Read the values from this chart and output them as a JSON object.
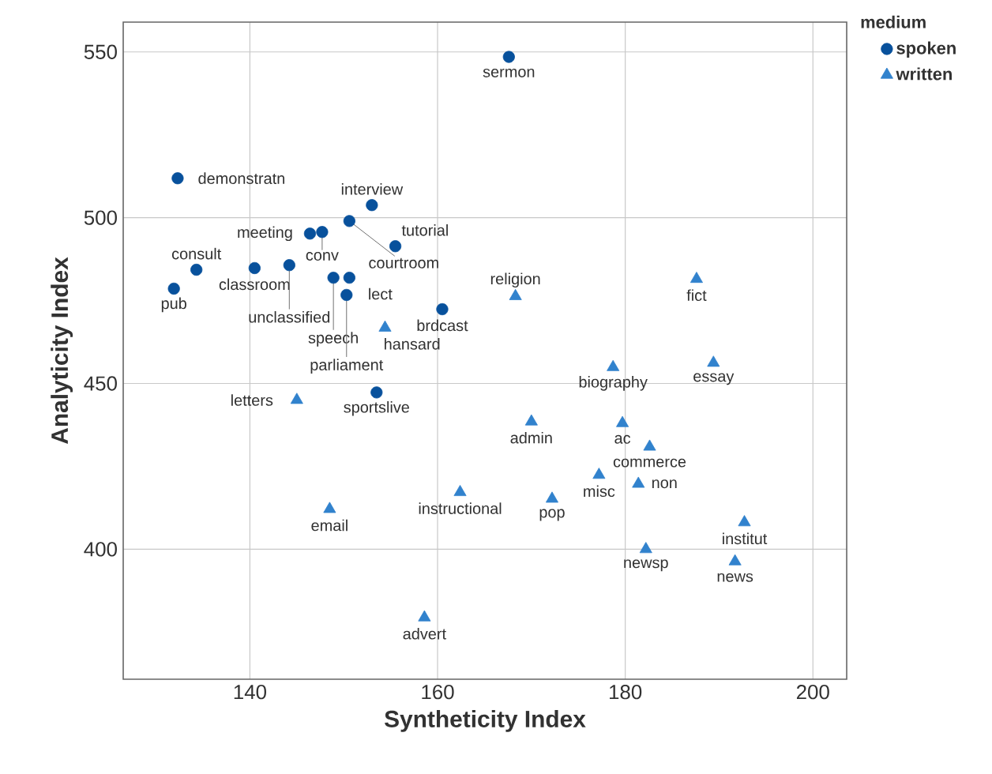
{
  "chart_data": {
    "type": "scatter",
    "xlabel": "Syntheticity Index",
    "ylabel": "Analyticity Index",
    "legend_title": "medium",
    "legend": "top right",
    "grid": true,
    "xlim": [
      126.5,
      203.6
    ],
    "ylim": [
      360.8,
      559
    ],
    "xticks": [
      140,
      160,
      180,
      200
    ],
    "yticks": [
      400,
      450,
      500,
      550
    ],
    "series": [
      {
        "name": "spoken",
        "color": "#08519c",
        "marker": "circle",
        "x": [
          167.6,
          132.3,
          153.0,
          150.6,
          146.4,
          147.7,
          155.5,
          134.3,
          131.9,
          140.5,
          144.2,
          148.9,
          150.6,
          150.3,
          160.5,
          153.5
        ],
        "values": [
          548.5,
          511.9,
          503.8,
          499.0,
          495.2,
          495.7,
          491.4,
          484.3,
          478.6,
          484.8,
          485.7,
          481.9,
          481.9,
          476.7,
          472.4,
          447.3
        ]
      },
      {
        "name": "written",
        "color": "#3182cd",
        "marker": "triangle",
        "x": [
          154.4,
          168.3,
          187.6,
          189.4,
          178.7,
          145.0,
          170.0,
          179.7,
          182.6,
          177.2,
          181.4,
          162.4,
          172.2,
          148.5,
          192.7,
          182.2,
          191.7,
          158.6
        ],
        "values": [
          466.8,
          476.3,
          481.5,
          456.2,
          454.9,
          445.0,
          438.5,
          438.0,
          430.9,
          422.4,
          419.7,
          417.2,
          415.2,
          412.1,
          408.1,
          400.0,
          396.3,
          379.4
        ]
      }
    ],
    "annotations": [
      {
        "text": "sermon",
        "x": 167.6,
        "y": 548.5
      },
      {
        "text": "demonstratn",
        "x": 132.3,
        "y": 511.9
      },
      {
        "text": "interview",
        "x": 153.0,
        "y": 503.8
      },
      {
        "text": "courtroom",
        "x": 150.6,
        "y": 499.0
      },
      {
        "text": "meeting",
        "x": 146.4,
        "y": 495.2
      },
      {
        "text": "conv",
        "x": 147.7,
        "y": 495.7
      },
      {
        "text": "tutorial",
        "x": 155.5,
        "y": 491.4
      },
      {
        "text": "consult",
        "x": 134.3,
        "y": 484.3
      },
      {
        "text": "pub",
        "x": 131.9,
        "y": 478.6
      },
      {
        "text": "classroom",
        "x": 140.5,
        "y": 484.8
      },
      {
        "text": "unclassified",
        "x": 144.2,
        "y": 485.7
      },
      {
        "text": "speech",
        "x": 148.9,
        "y": 481.9
      },
      {
        "text": "lect",
        "x": 150.6,
        "y": 481.9
      },
      {
        "text": "parliament",
        "x": 150.3,
        "y": 476.7
      },
      {
        "text": "brdcast",
        "x": 160.5,
        "y": 472.4
      },
      {
        "text": "sportslive",
        "x": 153.5,
        "y": 447.3
      },
      {
        "text": "hansard",
        "x": 154.4,
        "y": 466.8
      },
      {
        "text": "religion",
        "x": 168.3,
        "y": 476.3
      },
      {
        "text": "fict",
        "x": 187.6,
        "y": 481.5
      },
      {
        "text": "essay",
        "x": 189.4,
        "y": 456.2
      },
      {
        "text": "biography",
        "x": 178.7,
        "y": 454.9
      },
      {
        "text": "letters",
        "x": 145.0,
        "y": 445.0
      },
      {
        "text": "admin",
        "x": 170.0,
        "y": 438.5
      },
      {
        "text": "ac",
        "x": 179.7,
        "y": 438.0
      },
      {
        "text": "commerce",
        "x": 182.6,
        "y": 430.9
      },
      {
        "text": "misc",
        "x": 177.2,
        "y": 422.4
      },
      {
        "text": "non",
        "x": 181.4,
        "y": 419.7
      },
      {
        "text": "instructional",
        "x": 162.4,
        "y": 417.2
      },
      {
        "text": "pop",
        "x": 172.2,
        "y": 415.2
      },
      {
        "text": "email",
        "x": 148.5,
        "y": 412.1
      },
      {
        "text": "institut",
        "x": 192.7,
        "y": 408.1
      },
      {
        "text": "newsp",
        "x": 182.2,
        "y": 400.0
      },
      {
        "text": "news",
        "x": 191.7,
        "y": 396.3
      },
      {
        "text": "advert",
        "x": 158.6,
        "y": 379.4
      }
    ]
  }
}
